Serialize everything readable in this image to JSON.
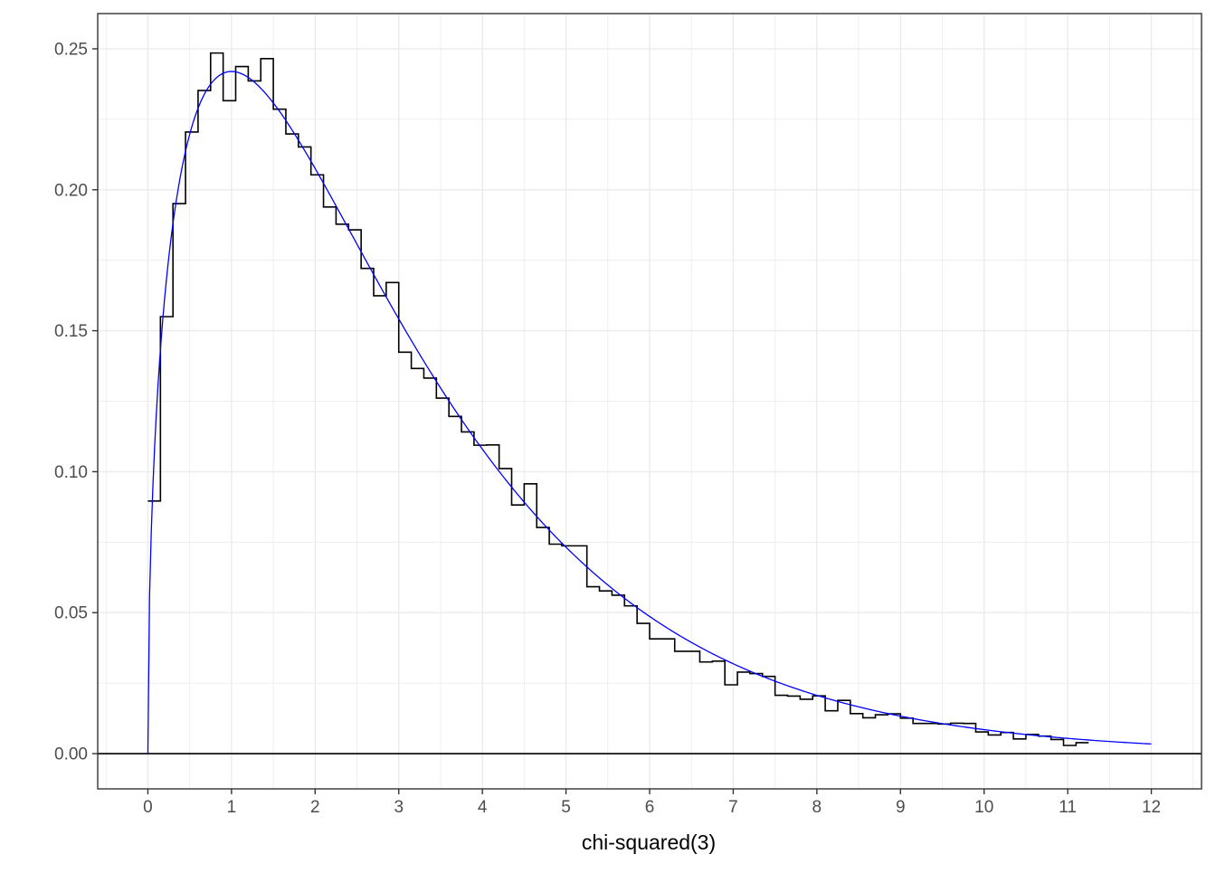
{
  "chart_data": {
    "type": "line",
    "title": "",
    "xlabel": "chi-squared(3)",
    "ylabel": "",
    "xlim": [
      -0.6,
      12.6
    ],
    "ylim": [
      -0.0125,
      0.2625
    ],
    "x_ticks": [
      "0",
      "1",
      "2",
      "3",
      "4",
      "5",
      "6",
      "7",
      "8",
      "9",
      "10",
      "11",
      "12"
    ],
    "y_ticks": [
      "0.00",
      "0.05",
      "0.10",
      "0.15",
      "0.20",
      "0.25"
    ],
    "x_tick_values": [
      0,
      1,
      2,
      3,
      4,
      5,
      6,
      7,
      8,
      9,
      10,
      11,
      12
    ],
    "y_tick_values": [
      0.0,
      0.05,
      0.1,
      0.15,
      0.2,
      0.25
    ],
    "grid": true,
    "reference_line_y": 0,
    "colors": {
      "histogram": "#000000",
      "density": "#0000ff",
      "grid": "#ebebeb",
      "panel_border": "#333333"
    },
    "series": [
      {
        "type": "step",
        "bin_width": 0.15,
        "x_start": 0,
        "values": [
          0.0896,
          0.155,
          0.1951,
          0.2205,
          0.2352,
          0.2485,
          0.2316,
          0.2437,
          0.2386,
          0.2465,
          0.2286,
          0.2198,
          0.2152,
          0.2053,
          0.1939,
          0.1878,
          0.1858,
          0.1721,
          0.1624,
          0.1671,
          0.1424,
          0.1366,
          0.1332,
          0.1261,
          0.1196,
          0.1141,
          0.1094,
          0.1095,
          0.1011,
          0.0882,
          0.0957,
          0.0802,
          0.0743,
          0.0737,
          0.0737,
          0.0592,
          0.0577,
          0.0562,
          0.0524,
          0.0462,
          0.0407,
          0.0407,
          0.0363,
          0.0363,
          0.0325,
          0.0328,
          0.0244,
          0.0289,
          0.0284,
          0.0274,
          0.0207,
          0.0204,
          0.0193,
          0.0205,
          0.0152,
          0.0189,
          0.0142,
          0.0127,
          0.0138,
          0.0141,
          0.0126,
          0.0107,
          0.0107,
          0.0105,
          0.0108,
          0.0107,
          0.0077,
          0.0066,
          0.0075,
          0.0052,
          0.0068,
          0.0062,
          0.005,
          0.0029,
          0.0039
        ]
      },
      {
        "type": "line",
        "function": "chi-squared density, 3 degrees of freedom",
        "x_range": [
          0,
          12
        ],
        "x": [
          0,
          0.05,
          0.1,
          0.15,
          0.2,
          0.3,
          0.4,
          0.5,
          0.6,
          0.8,
          1.0,
          1.2,
          1.5,
          2.0,
          2.5,
          3.0,
          3.5,
          4.0,
          4.5,
          5.0,
          5.5,
          6.0,
          6.5,
          7.0,
          7.5,
          8.0,
          8.5,
          9.0,
          9.5,
          10.0,
          10.5,
          11.0,
          11.5,
          12.0
        ],
        "values": [
          0,
          0.0871,
          0.1204,
          0.1435,
          0.1614,
          0.1877,
          0.2065,
          0.2197,
          0.2293,
          0.2401,
          0.242,
          0.2393,
          0.2306,
          0.2076,
          0.1812,
          0.1542,
          0.1296,
          0.108,
          0.089,
          0.0732,
          0.0596,
          0.0485,
          0.0392,
          0.0317,
          0.0255,
          0.0206,
          0.0164,
          0.0132,
          0.0106,
          0.0084,
          0.0068,
          0.0054,
          0.0043,
          0.0034
        ]
      }
    ]
  }
}
